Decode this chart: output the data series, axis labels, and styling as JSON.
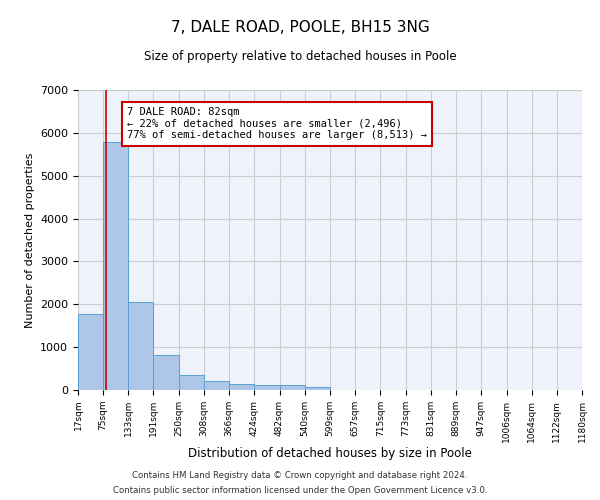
{
  "title": "7, DALE ROAD, POOLE, BH15 3NG",
  "subtitle": "Size of property relative to detached houses in Poole",
  "xlabel": "Distribution of detached houses by size in Poole",
  "ylabel": "Number of detached properties",
  "footer_line1": "Contains HM Land Registry data © Crown copyright and database right 2024.",
  "footer_line2": "Contains public sector information licensed under the Open Government Licence v3.0.",
  "bar_edges": [
    17,
    75,
    133,
    191,
    250,
    308,
    366,
    424,
    482,
    540,
    599,
    657,
    715,
    773,
    831,
    889,
    947,
    1006,
    1064,
    1122,
    1180
  ],
  "bar_heights": [
    1780,
    5780,
    2060,
    820,
    340,
    200,
    130,
    120,
    110,
    80,
    0,
    0,
    0,
    0,
    0,
    0,
    0,
    0,
    0,
    0
  ],
  "bar_color": "#aec6e8",
  "bar_edgecolor": "#5a9fd4",
  "grid_color": "#cccccc",
  "bg_color": "#eef3fb",
  "property_line_x": 82,
  "property_line_color": "#cc0000",
  "ylim": [
    0,
    7000
  ],
  "annotation_line1": "7 DALE ROAD: 82sqm",
  "annotation_line2": "← 22% of detached houses are smaller (2,496)",
  "annotation_line3": "77% of semi-detached houses are larger (8,513) →",
  "annotation_box_color": "#ffffff",
  "annotation_box_edgecolor": "#cc0000",
  "tick_labels": [
    "17sqm",
    "75sqm",
    "133sqm",
    "191sqm",
    "250sqm",
    "308sqm",
    "366sqm",
    "424sqm",
    "482sqm",
    "540sqm",
    "599sqm",
    "657sqm",
    "715sqm",
    "773sqm",
    "831sqm",
    "889sqm",
    "947sqm",
    "1006sqm",
    "1064sqm",
    "1122sqm",
    "1180sqm"
  ],
  "yticks": [
    0,
    1000,
    2000,
    3000,
    4000,
    5000,
    6000,
    7000
  ]
}
